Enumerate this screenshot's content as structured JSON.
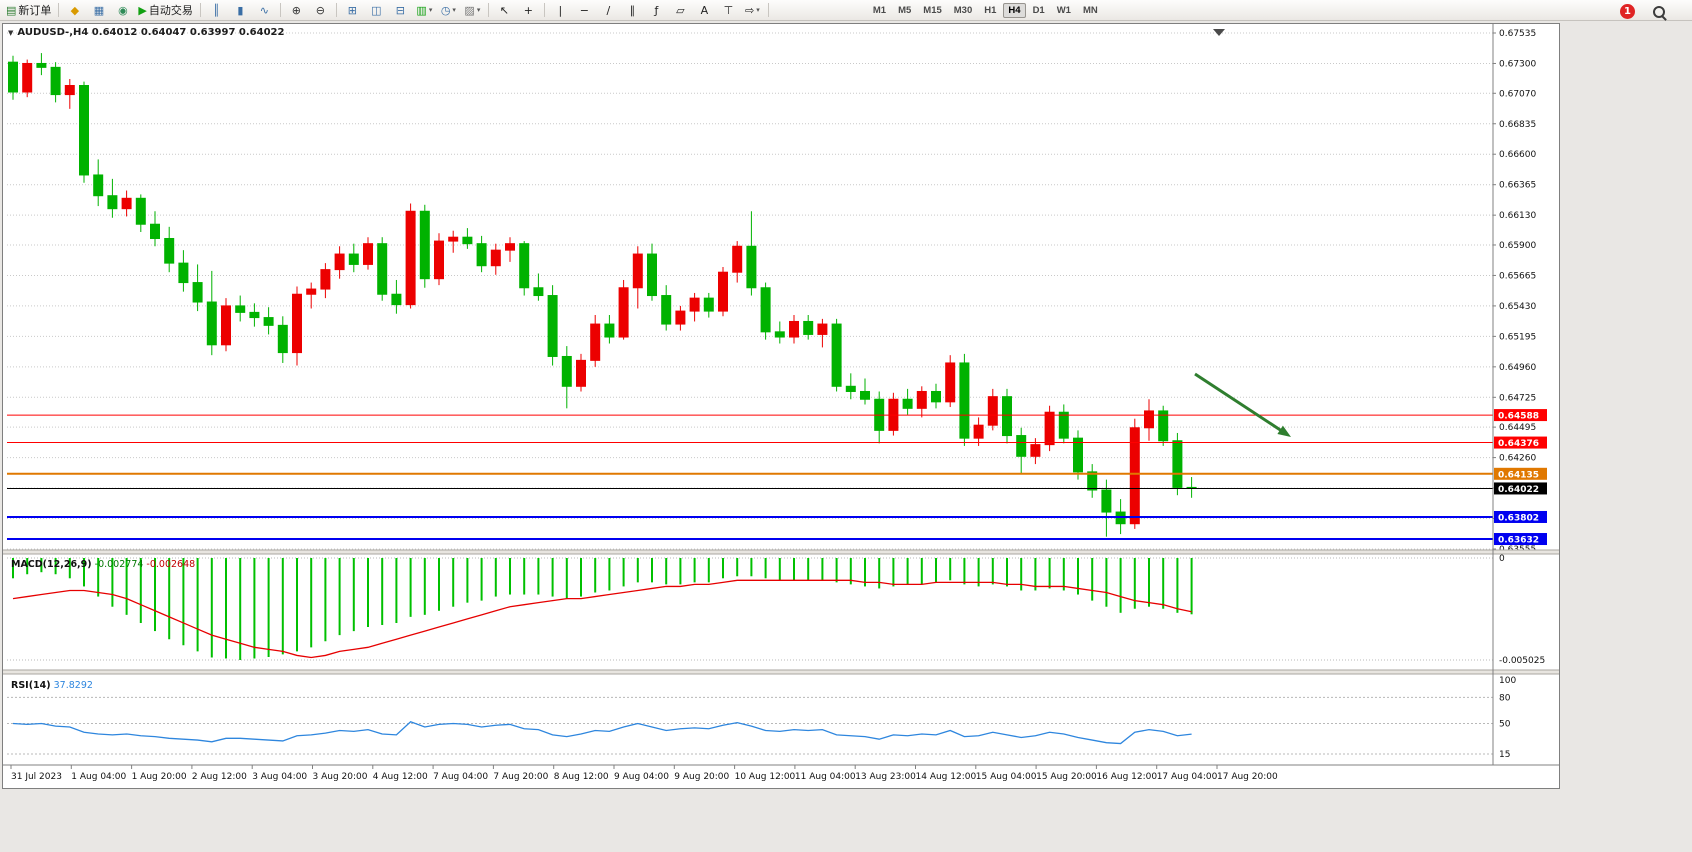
{
  "toolbar": {
    "items": [
      {
        "type": "button",
        "name": "new-order-button",
        "glyph": "▤",
        "color": "#2e7d32",
        "label": "新订单"
      },
      {
        "type": "sep"
      },
      {
        "type": "button",
        "name": "market-watch-icon",
        "glyph": "◆",
        "color": "#d99a00"
      },
      {
        "type": "button",
        "name": "data-window-icon",
        "glyph": "▦",
        "color": "#3a6ea5"
      },
      {
        "type": "button",
        "name": "navigator-icon",
        "glyph": "◉",
        "color": "#2e8b57"
      },
      {
        "type": "button",
        "name": "auto-trading-button",
        "glyph": "▶",
        "color": "#11a011",
        "label": "自动交易"
      },
      {
        "type": "sep"
      },
      {
        "type": "button",
        "name": "chart-bars-icon",
        "glyph": "║",
        "color": "#3a6ea5"
      },
      {
        "type": "button",
        "name": "chart-candles-icon",
        "glyph": "▮",
        "color": "#3a6ea5"
      },
      {
        "type": "button",
        "name": "chart-line-icon",
        "glyph": "∿",
        "color": "#3a6ea5"
      },
      {
        "type": "sep"
      },
      {
        "type": "button",
        "name": "zoom-in-icon",
        "glyph": "⊕",
        "color": "#333333"
      },
      {
        "type": "button",
        "name": "zoom-out-icon",
        "glyph": "⊖",
        "color": "#333333"
      },
      {
        "type": "sep"
      },
      {
        "type": "button",
        "name": "tile-windows-icon",
        "glyph": "⊞",
        "color": "#3a6ea5"
      },
      {
        "type": "button",
        "name": "cascade-windows-icon",
        "glyph": "◫",
        "color": "#3a6ea5"
      },
      {
        "type": "button",
        "name": "arrange-windows-icon",
        "glyph": "⊟",
        "color": "#3a6ea5"
      },
      {
        "type": "button",
        "name": "new-chart-button",
        "glyph": "▥",
        "color": "#11a011",
        "dropdown": true
      },
      {
        "type": "button",
        "name": "period-button",
        "glyph": "◷",
        "color": "#3a6ea5",
        "dropdown": true
      },
      {
        "type": "button",
        "name": "template-button",
        "glyph": "▨",
        "color": "#777777",
        "dropdown": true
      },
      {
        "type": "sep"
      },
      {
        "type": "button",
        "name": "cursor-icon",
        "glyph": "↖",
        "color": "#222222"
      },
      {
        "type": "button",
        "name": "crosshair-icon",
        "glyph": "+",
        "color": "#222222"
      },
      {
        "type": "sep"
      },
      {
        "type": "button",
        "name": "vertical-line-tool",
        "glyph": "|",
        "color": "#222222"
      },
      {
        "type": "button",
        "name": "horizontal-line-tool",
        "glyph": "−",
        "color": "#222222"
      },
      {
        "type": "button",
        "name": "trendline-tool",
        "glyph": "∕",
        "color": "#222222"
      },
      {
        "type": "button",
        "name": "channel-tool",
        "glyph": "∥",
        "color": "#222222"
      },
      {
        "type": "button",
        "name": "fibonacci-tool",
        "glyph": "ƒ",
        "color": "#222222"
      },
      {
        "type": "button",
        "name": "shapes-tool",
        "glyph": "▱",
        "color": "#222222"
      },
      {
        "type": "button",
        "name": "text-tool",
        "glyph": "A",
        "color": "#222222"
      },
      {
        "type": "button",
        "name": "text-label-tool",
        "glyph": "⊤",
        "color": "#222222"
      },
      {
        "type": "button",
        "name": "arrows-tool",
        "glyph": "⇨",
        "color": "#222222",
        "dropdown": true
      },
      {
        "type": "sep"
      }
    ],
    "timeframes": [
      "M1",
      "M5",
      "M15",
      "M30",
      "H1",
      "H4",
      "D1",
      "W1",
      "MN"
    ],
    "active_timeframe": "H4",
    "notification_count": "1"
  },
  "chart": {
    "symbol_line": "AUDUSD-,H4  0.64012 0.64047 0.63997 0.64022"
  },
  "chart_data": [
    {
      "type": "candlestick",
      "title": "AUDUSD-,H4",
      "ohlc_display": {
        "open": "0.64012",
        "high": "0.64047",
        "low": "0.63997",
        "close": "0.64022"
      },
      "ylim": [
        0.63555,
        0.67535
      ],
      "y_axis_ticks": [
        "0.67535",
        "0.67300",
        "0.67070",
        "0.66835",
        "0.66600",
        "0.66365",
        "0.66130",
        "0.65900",
        "0.65665",
        "0.65430",
        "0.65195",
        "0.64960",
        "0.64725",
        "0.64495",
        "0.64260",
        "0.64025",
        "0.63790",
        "0.63555"
      ],
      "x_labels": [
        "31 Jul 2023",
        "1 Aug 04:00",
        "1 Aug 20:00",
        "2 Aug 12:00",
        "3 Aug 04:00",
        "3 Aug 20:00",
        "4 Aug 12:00",
        "7 Aug 04:00",
        "7 Aug 20:00",
        "8 Aug 12:00",
        "9 Aug 04:00",
        "9 Aug 20:00",
        "10 Aug 12:00",
        "11 Aug 04:00",
        "13 Aug 23:00",
        "14 Aug 12:00",
        "15 Aug 04:00",
        "15 Aug 20:00",
        "16 Aug 12:00",
        "17 Aug 04:00",
        "17 Aug 20:00"
      ],
      "candles": [
        [
          0.6731,
          0.6736,
          0.6702,
          0.6708
        ],
        [
          0.6708,
          0.6733,
          0.6704,
          0.673
        ],
        [
          0.673,
          0.6738,
          0.6721,
          0.6727
        ],
        [
          0.6727,
          0.6731,
          0.67,
          0.6706
        ],
        [
          0.6706,
          0.6718,
          0.6695,
          0.6713
        ],
        [
          0.6713,
          0.6716,
          0.6638,
          0.6644
        ],
        [
          0.6644,
          0.6656,
          0.662,
          0.6628
        ],
        [
          0.6628,
          0.6641,
          0.6611,
          0.6618
        ],
        [
          0.6618,
          0.6632,
          0.6612,
          0.6626
        ],
        [
          0.6626,
          0.6629,
          0.66,
          0.6606
        ],
        [
          0.6606,
          0.6616,
          0.6589,
          0.6595
        ],
        [
          0.6595,
          0.6604,
          0.6569,
          0.6576
        ],
        [
          0.6576,
          0.6586,
          0.6554,
          0.6561
        ],
        [
          0.6561,
          0.6575,
          0.6539,
          0.6546
        ],
        [
          0.6546,
          0.657,
          0.6505,
          0.6513
        ],
        [
          0.6513,
          0.6549,
          0.6508,
          0.6543
        ],
        [
          0.6543,
          0.6551,
          0.6531,
          0.6538
        ],
        [
          0.6538,
          0.6545,
          0.6527,
          0.6534
        ],
        [
          0.6534,
          0.6542,
          0.6521,
          0.6528
        ],
        [
          0.6528,
          0.6535,
          0.6499,
          0.6507
        ],
        [
          0.6507,
          0.6558,
          0.6497,
          0.6552
        ],
        [
          0.6552,
          0.6561,
          0.6541,
          0.6556
        ],
        [
          0.6556,
          0.6576,
          0.6549,
          0.6571
        ],
        [
          0.6571,
          0.6589,
          0.6564,
          0.6583
        ],
        [
          0.6583,
          0.6591,
          0.6569,
          0.6575
        ],
        [
          0.6575,
          0.6596,
          0.6571,
          0.6591
        ],
        [
          0.6591,
          0.6596,
          0.6547,
          0.6552
        ],
        [
          0.6552,
          0.6563,
          0.6537,
          0.6544
        ],
        [
          0.6544,
          0.6622,
          0.6541,
          0.6616
        ],
        [
          0.6616,
          0.6621,
          0.6557,
          0.6564
        ],
        [
          0.6564,
          0.6599,
          0.6559,
          0.6593
        ],
        [
          0.6593,
          0.6601,
          0.6584,
          0.6596
        ],
        [
          0.6596,
          0.6603,
          0.6587,
          0.6591
        ],
        [
          0.6591,
          0.6597,
          0.6569,
          0.6574
        ],
        [
          0.6574,
          0.6591,
          0.6567,
          0.6586
        ],
        [
          0.6586,
          0.6596,
          0.6577,
          0.6591
        ],
        [
          0.6591,
          0.6593,
          0.6551,
          0.6557
        ],
        [
          0.6557,
          0.6568,
          0.6547,
          0.6551
        ],
        [
          0.6551,
          0.6559,
          0.6497,
          0.6504
        ],
        [
          0.6504,
          0.6512,
          0.6464,
          0.6481
        ],
        [
          0.6481,
          0.6506,
          0.6477,
          0.6501
        ],
        [
          0.6501,
          0.6536,
          0.6496,
          0.6529
        ],
        [
          0.6529,
          0.6536,
          0.6514,
          0.6519
        ],
        [
          0.6519,
          0.6563,
          0.6517,
          0.6557
        ],
        [
          0.6557,
          0.6589,
          0.6541,
          0.6583
        ],
        [
          0.6583,
          0.6591,
          0.6547,
          0.6551
        ],
        [
          0.6551,
          0.6559,
          0.6524,
          0.6529
        ],
        [
          0.6529,
          0.6543,
          0.6524,
          0.6539
        ],
        [
          0.6539,
          0.6553,
          0.6531,
          0.6549
        ],
        [
          0.6549,
          0.6553,
          0.6534,
          0.6539
        ],
        [
          0.6539,
          0.6573,
          0.6535,
          0.6569
        ],
        [
          0.6569,
          0.6593,
          0.6561,
          0.6589
        ],
        [
          0.6589,
          0.6616,
          0.6551,
          0.6557
        ],
        [
          0.6557,
          0.6561,
          0.6517,
          0.6523
        ],
        [
          0.6523,
          0.6531,
          0.6514,
          0.6519
        ],
        [
          0.6519,
          0.6536,
          0.6514,
          0.6531
        ],
        [
          0.6531,
          0.6536,
          0.6517,
          0.6521
        ],
        [
          0.6521,
          0.6533,
          0.6511,
          0.6529
        ],
        [
          0.6529,
          0.6533,
          0.6477,
          0.6481
        ],
        [
          0.6481,
          0.6491,
          0.6471,
          0.6477
        ],
        [
          0.6477,
          0.6487,
          0.6467,
          0.6471
        ],
        [
          0.6471,
          0.6477,
          0.6437,
          0.6447
        ],
        [
          0.6447,
          0.6476,
          0.6443,
          0.6471
        ],
        [
          0.6471,
          0.6479,
          0.6459,
          0.6464
        ],
        [
          0.6464,
          0.6481,
          0.6457,
          0.6477
        ],
        [
          0.6477,
          0.6483,
          0.6464,
          0.6469
        ],
        [
          0.6469,
          0.6505,
          0.6465,
          0.6499
        ],
        [
          0.6499,
          0.6506,
          0.6435,
          0.6441
        ],
        [
          0.6441,
          0.6457,
          0.6435,
          0.6451
        ],
        [
          0.6451,
          0.6479,
          0.6447,
          0.6473
        ],
        [
          0.6473,
          0.6479,
          0.6437,
          0.6443
        ],
        [
          0.6443,
          0.6449,
          0.6413,
          0.6427
        ],
        [
          0.6427,
          0.6441,
          0.6421,
          0.6436
        ],
        [
          0.6436,
          0.6466,
          0.6431,
          0.6461
        ],
        [
          0.6461,
          0.6467,
          0.6437,
          0.6441
        ],
        [
          0.6441,
          0.6447,
          0.6409,
          0.6415
        ],
        [
          0.6415,
          0.6421,
          0.6395,
          0.6401
        ],
        [
          0.6401,
          0.6409,
          0.6365,
          0.6384
        ],
        [
          0.6384,
          0.6394,
          0.6367,
          0.6375
        ],
        [
          0.6375,
          0.6456,
          0.6371,
          0.6449
        ],
        [
          0.6449,
          0.6471,
          0.6439,
          0.6462
        ],
        [
          0.6462,
          0.6466,
          0.6435,
          0.6439
        ],
        [
          0.6439,
          0.6445,
          0.6397,
          0.6403
        ],
        [
          0.6403,
          0.6411,
          0.6395,
          0.64022
        ]
      ],
      "price_lines": [
        {
          "price": 0.64588,
          "label": "0.64588",
          "color": "#ff0000",
          "width": 1
        },
        {
          "price": 0.64376,
          "label": "0.64376",
          "color": "#ff0000",
          "width": 1
        },
        {
          "price": 0.64135,
          "label": "0.64135",
          "color": "#e07800",
          "width": 2
        },
        {
          "price": 0.64022,
          "label": "0.64022",
          "color": "#000000",
          "width": 1
        },
        {
          "price": 0.63802,
          "label": "0.63802",
          "color": "#0000f0",
          "width": 2
        },
        {
          "price": 0.63632,
          "label": "0.63632",
          "color": "#0000f0",
          "width": 2
        }
      ],
      "annotation_arrow": {
        "from": [
          1192,
          350
        ],
        "to": [
          1288,
          413
        ],
        "color": "#2f7e2f"
      },
      "colors": {
        "bull": "#ec0000",
        "bear": "#00b200",
        "grid": "#c9c9c9",
        "axis_text": "#111111"
      }
    },
    {
      "type": "bar",
      "name": "MACD(12,26,9)",
      "main_value": "-0.002774",
      "signal_value": "-0.002648",
      "ylim": [
        -0.005025,
        0
      ],
      "y_ticks": [
        "0",
        "-0.005025"
      ],
      "histogram": [
        -0.001,
        -0.0008,
        -0.0007,
        -0.0008,
        -0.001,
        -0.0014,
        -0.0019,
        -0.0024,
        -0.0028,
        -0.0032,
        -0.0036,
        -0.004,
        -0.0043,
        -0.0046,
        -0.0049,
        -0.00495,
        -0.005025,
        -0.00495,
        -0.00488,
        -0.00475,
        -0.0046,
        -0.0044,
        -0.0041,
        -0.0038,
        -0.0036,
        -0.0034,
        -0.0033,
        -0.0032,
        -0.0029,
        -0.0028,
        -0.0026,
        -0.0024,
        -0.0022,
        -0.0021,
        -0.0019,
        -0.0018,
        -0.0018,
        -0.0018,
        -0.0019,
        -0.002,
        -0.0019,
        -0.0017,
        -0.0016,
        -0.0014,
        -0.0012,
        -0.0012,
        -0.0013,
        -0.0013,
        -0.0012,
        -0.0012,
        -0.001,
        -0.0009,
        -0.0009,
        -0.001,
        -0.0011,
        -0.0011,
        -0.0011,
        -0.0011,
        -0.0012,
        -0.0013,
        -0.0014,
        -0.0015,
        -0.0014,
        -0.0013,
        -0.0013,
        -0.0012,
        -0.0011,
        -0.0013,
        -0.0014,
        -0.0013,
        -0.0014,
        -0.0016,
        -0.0016,
        -0.0015,
        -0.0016,
        -0.0018,
        -0.0021,
        -0.0024,
        -0.0027,
        -0.0025,
        -0.0024,
        -0.0025,
        -0.0027,
        -0.002774
      ],
      "signal": [
        -0.002,
        -0.0019,
        -0.0018,
        -0.0017,
        -0.0016,
        -0.0016,
        -0.0017,
        -0.0018,
        -0.002,
        -0.0023,
        -0.0026,
        -0.0029,
        -0.0032,
        -0.0035,
        -0.0038,
        -0.004,
        -0.0042,
        -0.0044,
        -0.0045,
        -0.0046,
        -0.0048,
        -0.0049,
        -0.0048,
        -0.0046,
        -0.0045,
        -0.0044,
        -0.0042,
        -0.004,
        -0.0038,
        -0.0036,
        -0.0034,
        -0.0032,
        -0.003,
        -0.0028,
        -0.0026,
        -0.0024,
        -0.0023,
        -0.0022,
        -0.0021,
        -0.002,
        -0.002,
        -0.0019,
        -0.0018,
        -0.0017,
        -0.0016,
        -0.0015,
        -0.0014,
        -0.0014,
        -0.0013,
        -0.0013,
        -0.0012,
        -0.0011,
        -0.0011,
        -0.0011,
        -0.0011,
        -0.0011,
        -0.0011,
        -0.0011,
        -0.0011,
        -0.0011,
        -0.0012,
        -0.0012,
        -0.0013,
        -0.0013,
        -0.0013,
        -0.0012,
        -0.0012,
        -0.0012,
        -0.0012,
        -0.0012,
        -0.0013,
        -0.0013,
        -0.0014,
        -0.0014,
        -0.0014,
        -0.0015,
        -0.0016,
        -0.0017,
        -0.0019,
        -0.0021,
        -0.0022,
        -0.0023,
        -0.0025,
        -0.002648
      ],
      "colors": {
        "histogram": "#00c000",
        "signal": "#e60000"
      }
    },
    {
      "type": "line",
      "name": "RSI(14)",
      "value": "37.8292",
      "y_ticks": [
        "100",
        "80",
        "50",
        "15"
      ],
      "values": [
        50,
        49,
        50,
        47,
        46,
        40,
        38,
        37,
        38,
        36,
        35,
        33,
        32,
        31,
        29,
        33,
        33,
        32,
        31,
        30,
        36,
        37,
        39,
        42,
        41,
        43,
        38,
        37,
        52,
        46,
        49,
        50,
        49,
        46,
        48,
        49,
        44,
        43,
        37,
        35,
        38,
        42,
        41,
        46,
        50,
        46,
        42,
        44,
        45,
        44,
        48,
        51,
        47,
        42,
        41,
        43,
        42,
        43,
        37,
        36,
        35,
        32,
        37,
        36,
        38,
        37,
        42,
        35,
        36,
        40,
        37,
        34,
        36,
        40,
        38,
        34,
        31,
        28,
        27,
        40,
        43,
        41,
        36,
        37.8292
      ],
      "colors": {
        "line": "#2e86de",
        "levels": "#b8b8b8"
      }
    }
  ]
}
